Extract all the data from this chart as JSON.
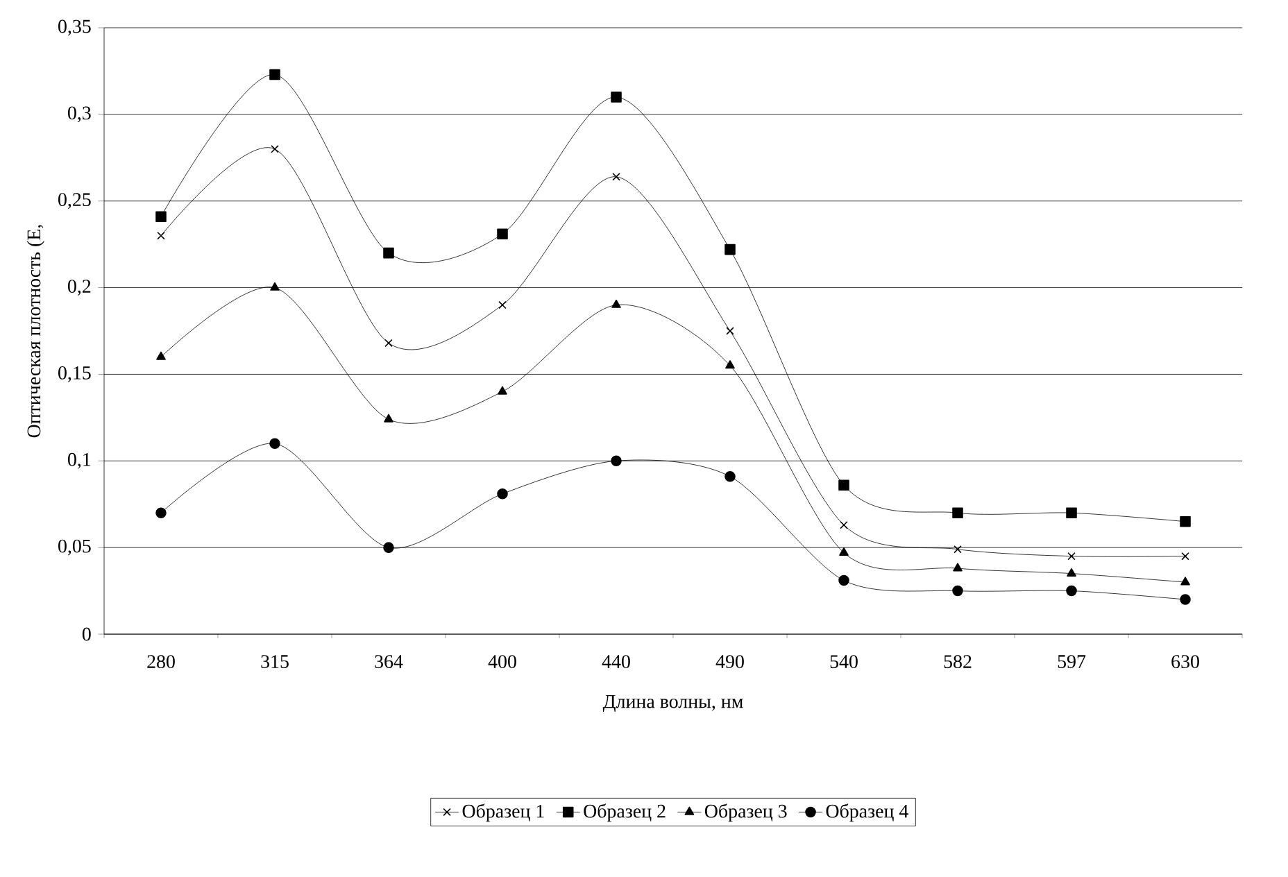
{
  "chart_data": {
    "type": "line",
    "xlabel": "Длина волны, нм",
    "ylabel": "Оптическая плотность (Е,",
    "categories": [
      "280",
      "315",
      "364",
      "400",
      "440",
      "490",
      "540",
      "582",
      "597",
      "630"
    ],
    "series": [
      {
        "name": "Образец 1",
        "color": "#000000",
        "marker": "cross",
        "values": [
          0.23,
          0.28,
          0.168,
          0.19,
          0.264,
          0.175,
          0.063,
          0.049,
          0.045,
          0.045
        ]
      },
      {
        "name": "Образец 2",
        "color": "#000000",
        "marker": "square",
        "values": [
          0.241,
          0.323,
          0.22,
          0.231,
          0.31,
          0.222,
          0.086,
          0.07,
          0.07,
          0.065
        ]
      },
      {
        "name": "Образец 3",
        "color": "#000000",
        "marker": "triangle",
        "values": [
          0.16,
          0.2,
          0.124,
          0.14,
          0.19,
          0.155,
          0.047,
          0.038,
          0.035,
          0.03
        ]
      },
      {
        "name": "Образец 4",
        "color": "#000000",
        "marker": "circle",
        "values": [
          0.07,
          0.11,
          0.05,
          0.081,
          0.1,
          0.091,
          0.031,
          0.025,
          0.025,
          0.02
        ]
      }
    ],
    "ylim": [
      0,
      0.35
    ],
    "yticks": [
      0,
      {
        "value": 0.05,
        "label": "0,05"
      },
      {
        "value": 0.1,
        "label": "0,1"
      },
      {
        "value": 0.15,
        "label": "0,15"
      },
      {
        "value": 0.2,
        "label": "0,2"
      },
      {
        "value": 0.25,
        "label": "0,25"
      },
      {
        "value": 0.3,
        "label": "0,3"
      },
      {
        "value": 0.35,
        "label": "0,35"
      }
    ],
    "grid": "y",
    "legend": "bottom",
    "line_style": "solid"
  }
}
